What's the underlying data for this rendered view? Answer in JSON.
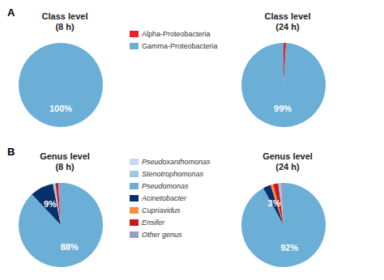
{
  "chart_data": [
    {
      "type": "pie",
      "title": "Class level\n(8 h)",
      "values": [
        100
      ],
      "colors": [
        "#6baed6"
      ],
      "value_labels": [
        "100%"
      ]
    },
    {
      "type": "pie",
      "title": "Class level\n(24 h)",
      "values": [
        1,
        99
      ],
      "colors": [
        "#e8212a",
        "#6baed6"
      ],
      "value_labels": [
        null,
        "99%"
      ]
    },
    {
      "type": "pie",
      "title": "Genus level\n(8 h)",
      "values": [
        88,
        9,
        1,
        1,
        1
      ],
      "colors": [
        "#6baed6",
        "#08306b",
        "#9ecae1",
        "#cb181d",
        "#9e9ac8"
      ],
      "value_labels": [
        "88%",
        "9%",
        null,
        null,
        null
      ]
    },
    {
      "type": "pie",
      "title": "Genus level\n(24 h)",
      "values": [
        92,
        3,
        1,
        2,
        1,
        1
      ],
      "colors": [
        "#6baed6",
        "#08306b",
        "#fd8d3c",
        "#cb181d",
        "#9ecae1",
        "#9e9ac8"
      ],
      "value_labels": [
        "92%",
        "3%",
        null,
        null,
        null,
        null
      ]
    }
  ],
  "panel_labels": [
    "A",
    "B"
  ],
  "legends": [
    {
      "series": [
        {
          "name": "Alpha-Proteobacteria",
          "color": "#e8212a"
        },
        {
          "name": "Gamma-Proteobacteria",
          "color": "#6baed6"
        }
      ]
    },
    {
      "series": [
        {
          "name": "Pseudoxanthomonas",
          "color": "#c6dbef"
        },
        {
          "name": "Stenotrophomonas",
          "color": "#9ecae1"
        },
        {
          "name": "Pseudomonas",
          "color": "#6baed6"
        },
        {
          "name": "Acinetobacter",
          "color": "#08306b"
        },
        {
          "name": "Cupriavidus",
          "color": "#fd8d3c"
        },
        {
          "name": "Ensifer",
          "color": "#cb181d"
        },
        {
          "name": "Other genus",
          "color": "#9e9ac8"
        }
      ]
    }
  ]
}
